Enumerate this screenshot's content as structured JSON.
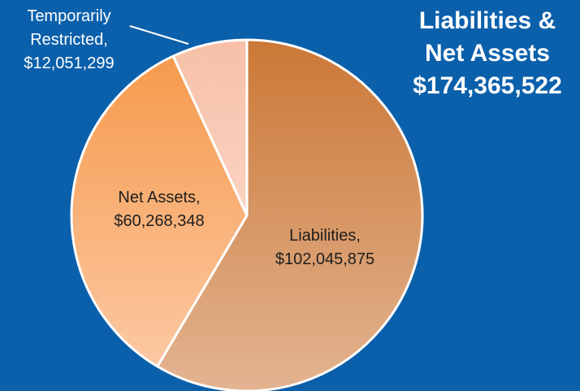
{
  "chart_data": {
    "type": "pie",
    "title": [
      "Liabilities &",
      "Net Assets",
      "$174,365,522"
    ],
    "categories": [
      "Liabilities,",
      "Net Assets,",
      "Temporarily Restricted,"
    ],
    "values": [
      102045875,
      60268348,
      12051299
    ],
    "value_labels": [
      "$102,045,875",
      "$60,268,348",
      "$12,051,299"
    ],
    "colors": [
      [
        "#cb7836",
        "#e3b491"
      ],
      [
        "#f69a4c",
        "#fcc8a3"
      ],
      [
        "#f7c0a8",
        "#fad3c2"
      ]
    ],
    "start_angle": 0,
    "direction": "clockwise"
  }
}
